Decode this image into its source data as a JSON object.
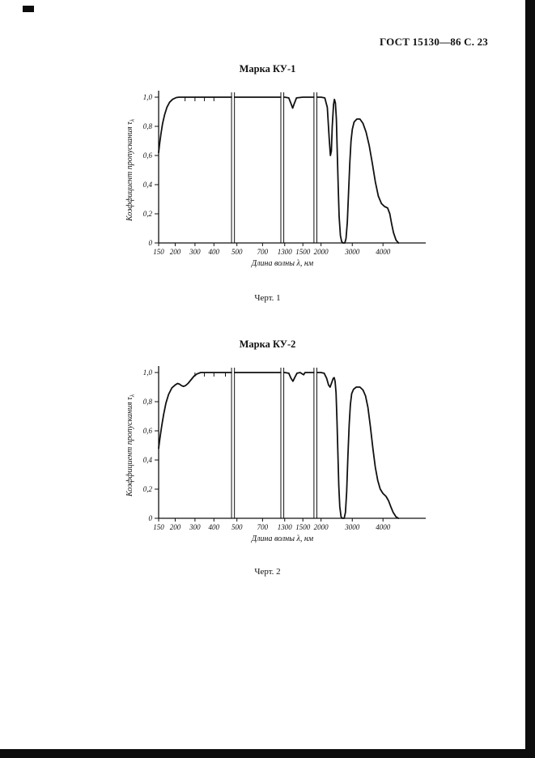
{
  "page": {
    "header": "ГОСТ 15130—86 С. 23",
    "background_color": "#ffffff",
    "edge_color": "#0d0d0d"
  },
  "chart_data": [
    {
      "type": "line",
      "title": "Марка КУ-1",
      "caption": "Черт. 1",
      "xlabel": "Длина волны λ, нм",
      "ylabel": "Коэффициент пропускания τ",
      "ylabel_sub": "λ",
      "ylim": [
        0,
        1.0
      ],
      "grid": false,
      "legend": "none",
      "y_ticks": [
        {
          "value": 0,
          "label": "0"
        },
        {
          "value": 0.2,
          "label": "0,2"
        },
        {
          "value": 0.4,
          "label": "0,4"
        },
        {
          "value": 0.6,
          "label": "0,6"
        },
        {
          "value": 0.8,
          "label": "0,8"
        },
        {
          "value": 1.0,
          "label": "1,0"
        }
      ],
      "x_ticks": [
        {
          "value": 150,
          "label": "150"
        },
        {
          "value": 200,
          "label": "200"
        },
        {
          "value": 300,
          "label": "300"
        },
        {
          "value": 400,
          "label": "400"
        },
        {
          "value": 500,
          "label": "500"
        },
        {
          "value": 700,
          "label": "700"
        },
        {
          "value": 1300,
          "label": "1300"
        },
        {
          "value": 1500,
          "label": "1500"
        },
        {
          "value": 2000,
          "label": "2000"
        },
        {
          "value": 3000,
          "label": "3000"
        },
        {
          "value": 4000,
          "label": "4000"
        }
      ],
      "x_scale_anchors": [
        [
          150,
          0
        ],
        [
          200,
          0.062
        ],
        [
          300,
          0.136
        ],
        [
          400,
          0.207
        ],
        [
          500,
          0.293
        ],
        [
          700,
          0.389
        ],
        [
          1300,
          0.472
        ],
        [
          1500,
          0.54
        ],
        [
          2000,
          0.608
        ],
        [
          3000,
          0.725
        ],
        [
          4000,
          0.84
        ],
        [
          4500,
          0.898
        ]
      ],
      "axis_breaks_nm": [
        483,
        1235,
        1845
      ],
      "curve_ticks_nm": [
        250,
        300,
        350,
        400
      ],
      "series": [
        {
          "name": "КУ-1",
          "points": [
            [
              150,
              0.62
            ],
            [
              153,
              0.68
            ],
            [
              157,
              0.75
            ],
            [
              162,
              0.82
            ],
            [
              168,
              0.88
            ],
            [
              175,
              0.93
            ],
            [
              183,
              0.965
            ],
            [
              192,
              0.985
            ],
            [
              205,
              0.997
            ],
            [
              220,
              1
            ],
            [
              300,
              1
            ],
            [
              400,
              1
            ],
            [
              500,
              1
            ],
            [
              700,
              1
            ],
            [
              1000,
              1
            ],
            [
              1300,
              1
            ],
            [
              1345,
              0.995
            ],
            [
              1370,
              0.955
            ],
            [
              1388,
              0.925
            ],
            [
              1405,
              0.955
            ],
            [
              1430,
              0.995
            ],
            [
              1500,
              1
            ],
            [
              1700,
              1
            ],
            [
              2000,
              1
            ],
            [
              2120,
              0.995
            ],
            [
              2200,
              0.93
            ],
            [
              2260,
              0.72
            ],
            [
              2300,
              0.6
            ],
            [
              2330,
              0.63
            ],
            [
              2360,
              0.8
            ],
            [
              2400,
              0.95
            ],
            [
              2430,
              0.985
            ],
            [
              2460,
              0.96
            ],
            [
              2490,
              0.85
            ],
            [
              2520,
              0.62
            ],
            [
              2550,
              0.38
            ],
            [
              2580,
              0.18
            ],
            [
              2620,
              0.05
            ],
            [
              2660,
              0.01
            ],
            [
              2700,
              0
            ],
            [
              2760,
              0
            ],
            [
              2800,
              0.03
            ],
            [
              2840,
              0.14
            ],
            [
              2880,
              0.34
            ],
            [
              2920,
              0.55
            ],
            [
              2960,
              0.7
            ],
            [
              3000,
              0.78
            ],
            [
              3060,
              0.83
            ],
            [
              3150,
              0.85
            ],
            [
              3250,
              0.85
            ],
            [
              3350,
              0.82
            ],
            [
              3450,
              0.76
            ],
            [
              3550,
              0.67
            ],
            [
              3650,
              0.55
            ],
            [
              3750,
              0.42
            ],
            [
              3850,
              0.32
            ],
            [
              3950,
              0.27
            ],
            [
              4050,
              0.25
            ],
            [
              4150,
              0.24
            ],
            [
              4220,
              0.2
            ],
            [
              4280,
              0.13
            ],
            [
              4340,
              0.07
            ],
            [
              4420,
              0.02
            ],
            [
              4500,
              0
            ]
          ]
        }
      ]
    },
    {
      "type": "line",
      "title": "Марка КУ-2",
      "caption": "Черт. 2",
      "xlabel": "Длина волны λ, нм",
      "ylabel": "Коэффициент пропускания τ",
      "ylabel_sub": "λ",
      "ylim": [
        0,
        1.0
      ],
      "grid": false,
      "legend": "none",
      "y_ticks": [
        {
          "value": 0,
          "label": "0"
        },
        {
          "value": 0.2,
          "label": "0,2"
        },
        {
          "value": 0.4,
          "label": "0,4"
        },
        {
          "value": 0.6,
          "label": "0,6"
        },
        {
          "value": 0.8,
          "label": "0,8"
        },
        {
          "value": 1.0,
          "label": "1,0"
        }
      ],
      "x_ticks": [
        {
          "value": 150,
          "label": "150"
        },
        {
          "value": 200,
          "label": "200"
        },
        {
          "value": 300,
          "label": "300"
        },
        {
          "value": 400,
          "label": "400"
        },
        {
          "value": 500,
          "label": "500"
        },
        {
          "value": 700,
          "label": "700"
        },
        {
          "value": 1300,
          "label": "1300"
        },
        {
          "value": 1500,
          "label": "1500"
        },
        {
          "value": 2000,
          "label": "2000"
        },
        {
          "value": 3000,
          "label": "3000"
        },
        {
          "value": 4000,
          "label": "4000"
        }
      ],
      "x_scale_anchors": [
        [
          150,
          0
        ],
        [
          200,
          0.062
        ],
        [
          300,
          0.136
        ],
        [
          400,
          0.207
        ],
        [
          500,
          0.293
        ],
        [
          700,
          0.389
        ],
        [
          1300,
          0.472
        ],
        [
          1500,
          0.54
        ],
        [
          2000,
          0.608
        ],
        [
          3000,
          0.725
        ],
        [
          4000,
          0.84
        ],
        [
          4500,
          0.898
        ]
      ],
      "axis_breaks_nm": [
        483,
        1235,
        1845
      ],
      "curve_ticks_nm": [
        300,
        350,
        400,
        450
      ],
      "series": [
        {
          "name": "КУ-2",
          "points": [
            [
              150,
              0.48
            ],
            [
              154,
              0.55
            ],
            [
              159,
              0.63
            ],
            [
              165,
              0.71
            ],
            [
              172,
              0.79
            ],
            [
              180,
              0.85
            ],
            [
              190,
              0.895
            ],
            [
              200,
              0.915
            ],
            [
              212,
              0.925
            ],
            [
              222,
              0.92
            ],
            [
              232,
              0.91
            ],
            [
              242,
              0.905
            ],
            [
              252,
              0.91
            ],
            [
              265,
              0.925
            ],
            [
              280,
              0.95
            ],
            [
              295,
              0.975
            ],
            [
              310,
              0.99
            ],
            [
              330,
              1
            ],
            [
              500,
              1
            ],
            [
              700,
              1
            ],
            [
              1000,
              1
            ],
            [
              1300,
              1
            ],
            [
              1345,
              0.995
            ],
            [
              1370,
              0.96
            ],
            [
              1390,
              0.94
            ],
            [
              1410,
              0.965
            ],
            [
              1435,
              0.995
            ],
            [
              1470,
              1
            ],
            [
              1520,
              0.985
            ],
            [
              1560,
              1
            ],
            [
              1800,
              1
            ],
            [
              2000,
              1
            ],
            [
              2100,
              0.995
            ],
            [
              2180,
              0.96
            ],
            [
              2240,
              0.915
            ],
            [
              2290,
              0.9
            ],
            [
              2340,
              0.93
            ],
            [
              2390,
              0.96
            ],
            [
              2420,
              0.965
            ],
            [
              2450,
              0.94
            ],
            [
              2480,
              0.86
            ],
            [
              2510,
              0.68
            ],
            [
              2540,
              0.44
            ],
            [
              2570,
              0.22
            ],
            [
              2600,
              0.08
            ],
            [
              2640,
              0.01
            ],
            [
              2680,
              0
            ],
            [
              2740,
              0
            ],
            [
              2780,
              0.04
            ],
            [
              2820,
              0.18
            ],
            [
              2860,
              0.42
            ],
            [
              2900,
              0.64
            ],
            [
              2940,
              0.78
            ],
            [
              2980,
              0.855
            ],
            [
              3040,
              0.885
            ],
            [
              3130,
              0.9
            ],
            [
              3250,
              0.9
            ],
            [
              3350,
              0.88
            ],
            [
              3430,
              0.84
            ],
            [
              3510,
              0.76
            ],
            [
              3590,
              0.63
            ],
            [
              3670,
              0.48
            ],
            [
              3750,
              0.35
            ],
            [
              3830,
              0.26
            ],
            [
              3910,
              0.2
            ],
            [
              4000,
              0.17
            ],
            [
              4100,
              0.15
            ],
            [
              4180,
              0.12
            ],
            [
              4250,
              0.08
            ],
            [
              4330,
              0.04
            ],
            [
              4420,
              0.01
            ],
            [
              4500,
              0
            ]
          ]
        }
      ]
    }
  ]
}
